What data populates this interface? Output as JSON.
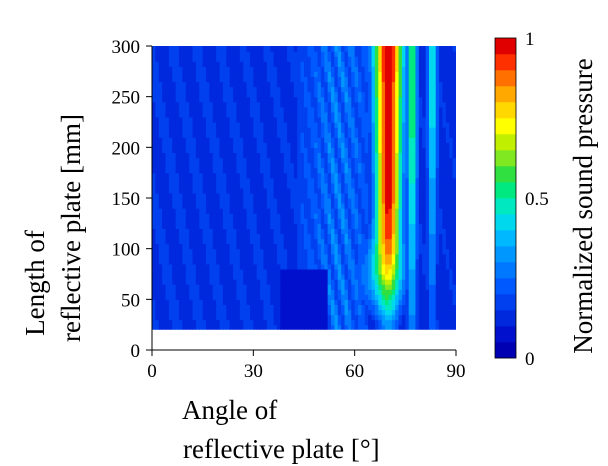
{
  "chart_data": {
    "type": "heatmap",
    "title": "",
    "xlabel": [
      "Angle of",
      "reflective plate [°]"
    ],
    "ylabel": [
      "Length of",
      "reflective plate [mm]"
    ],
    "xlim": [
      0,
      90
    ],
    "ylim": [
      0,
      300
    ],
    "data_y_range": [
      20,
      300
    ],
    "x_ticks": [
      "0",
      "30",
      "60",
      "90"
    ],
    "y_ticks": [
      "0",
      "50",
      "100",
      "150",
      "200",
      "250",
      "300"
    ],
    "colorbar": {
      "label": "Normalized sound pressure",
      "range": [
        0,
        1
      ],
      "levels": 20,
      "ticks": [
        "0",
        "0.5",
        "1"
      ],
      "colors": [
        "#0000b3",
        "#0010cc",
        "#0028dd",
        "#0040ee",
        "#0058ff",
        "#0078ff",
        "#0098ff",
        "#00b8ff",
        "#00d8ee",
        "#00e8c0",
        "#00e880",
        "#30e040",
        "#80e820",
        "#c0f000",
        "#ffff00",
        "#ffd800",
        "#ffa800",
        "#ff7000",
        "#ff3000",
        "#e00000"
      ]
    },
    "features": [
      {
        "description": "main focal lobe",
        "x_center": 70,
        "y_range": [
          60,
          300
        ],
        "peak_value": 1.0
      },
      {
        "description": "side lobe",
        "x_center": 77,
        "y_range": [
          20,
          300
        ],
        "peak_value": 0.55
      },
      {
        "description": "side lobe",
        "x_center": 83,
        "y_range": [
          20,
          300
        ],
        "peak_value": 0.45
      }
    ]
  }
}
